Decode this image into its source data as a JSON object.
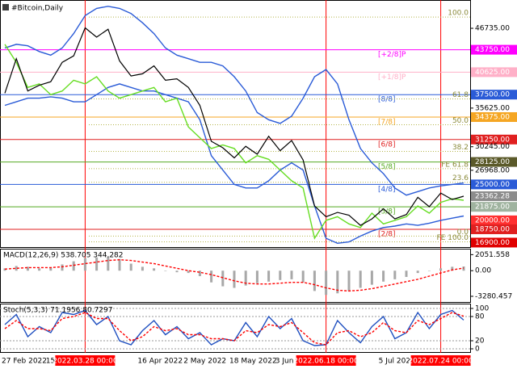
{
  "chart_data": [
    {
      "type": "line",
      "title": "#Bitcoin,Daily",
      "categories": [
        "27 Feb 2022",
        null,
        null,
        null,
        "15",
        null,
        null,
        "2022.03.28 00:00",
        null,
        null,
        null,
        null,
        "16 Apr 2022",
        null,
        null,
        null,
        "2 May 2022",
        null,
        null,
        null,
        "18 May 2022",
        null,
        null,
        null,
        "3 Jun",
        null,
        null,
        null,
        "2022.06.18 00:00",
        null,
        null,
        null,
        null,
        "5 Jul 2022",
        null,
        null,
        null,
        null,
        "2022.07.24 00:00",
        null,
        null
      ],
      "series": [
        {
          "color": "#2a5bd7",
          "style": "line",
          "values": [
            44000,
            44500,
            44300,
            43500,
            43000,
            44000,
            46000,
            48500,
            49500,
            49800,
            49500,
            48800,
            47500,
            46000,
            44000,
            43000,
            42500,
            42000,
            42000,
            41500,
            40000,
            38000,
            35000,
            34000,
            33500,
            34500,
            37000,
            40000,
            41000,
            39000,
            34000,
            30000,
            28000,
            26500,
            24500,
            23500,
            24000,
            24500,
            24800,
            25000,
            25200
          ]
        },
        {
          "color": "#2a5bd7",
          "style": "line",
          "values": [
            36000,
            36500,
            37000,
            37000,
            37200,
            37000,
            36500,
            36500,
            37500,
            38500,
            39000,
            38500,
            38000,
            38000,
            37500,
            37000,
            36500,
            34000,
            29000,
            27000,
            25000,
            24500,
            24500,
            25500,
            27000,
            28000,
            27000,
            22000,
            17500,
            16800,
            17000,
            17800,
            18500,
            19000,
            19200,
            19500,
            19300,
            19600,
            20000,
            20300,
            20600
          ]
        },
        {
          "color": "#66dd22",
          "style": "line",
          "values": [
            44500,
            42000,
            38500,
            39000,
            37500,
            38000,
            39500,
            39000,
            40000,
            38000,
            37000,
            37500,
            38000,
            38500,
            36500,
            37000,
            33000,
            31500,
            30000,
            30500,
            30000,
            28000,
            29000,
            28500,
            27000,
            25500,
            24500,
            17500,
            20000,
            20500,
            19500,
            19000,
            21000,
            19500,
            20000,
            20500,
            22000,
            21000,
            22500,
            23000,
            22800
          ]
        },
        {
          "color": "#000000",
          "style": "line",
          "values": [
            37700,
            42500,
            38000,
            38800,
            39300,
            42000,
            42900,
            46800,
            45500,
            46600,
            42200,
            40100,
            40400,
            41500,
            39500,
            39700,
            38500,
            36000,
            31000,
            30100,
            28700,
            30300,
            29200,
            31700,
            29700,
            31100,
            28400,
            22000,
            20500,
            21100,
            20700,
            19300,
            20200,
            21600,
            20200,
            20800,
            23200,
            21900,
            23800,
            22900,
            23362.28
          ]
        }
      ],
      "ylim": [
        16500,
        50000
      ],
      "yticks": [
        {
          "value": 46735,
          "label": "46735.00"
        },
        {
          "value": 43750,
          "label": "43750.00",
          "color": "#ff00ff"
        },
        {
          "value": 40625,
          "label": "40625.00",
          "color": "#ffb0c8"
        },
        {
          "value": 37500,
          "label": "37500.00",
          "color": "#2a5bd7"
        },
        {
          "value": 35625,
          "label": "35625.00"
        },
        {
          "value": 34375,
          "label": "34375.00",
          "color": "#f5a623"
        },
        {
          "value": 31250,
          "label": "31250.00",
          "color": "#e02020"
        },
        {
          "value": 30245,
          "label": "30245.00"
        },
        {
          "value": 28125,
          "label": "28125.00",
          "color": "#5b5a2a"
        },
        {
          "value": 26968,
          "label": "26968.00"
        },
        {
          "value": 25000,
          "label": "25000.00",
          "color": "#2a5bd7"
        },
        {
          "value": 23362.28,
          "label": "23362.28",
          "color": "#8c8c8c"
        },
        {
          "value": 21875,
          "label": "21875.00",
          "color": "#9fb39f"
        },
        {
          "value": 20000,
          "label": "20000.00",
          "color": "#ff3030"
        },
        {
          "value": 18750,
          "label": "18750.00",
          "color": "#e02020"
        },
        {
          "value": 16900,
          "label": "16900.00",
          "color": "#e00000"
        }
      ],
      "levels": [
        {
          "label": "[+2/8]P",
          "value": 43750,
          "color": "#ff00ff"
        },
        {
          "label": "[+1/8]P",
          "value": 40625,
          "color": "#ffb0c8"
        },
        {
          "label": "[8/8]",
          "value": 37500,
          "color": "#2a5bd7"
        },
        {
          "label": "[7/8]",
          "value": 34375,
          "color": "#f5a623"
        },
        {
          "label": "[6/8]",
          "value": 31250,
          "color": "#e02020"
        },
        {
          "label": "[5/8]",
          "value": 28125,
          "color": "#55aa22"
        },
        {
          "label": "[4/8]",
          "value": 25000,
          "color": "#2a5bd7"
        },
        {
          "label": "[3/8]",
          "value": 21875,
          "color": "#55aa22"
        },
        {
          "label": "[2/8]",
          "value": 18750,
          "color": "#e02020"
        }
      ],
      "fib_levels": [
        {
          "label": "100.0",
          "value": 48300
        },
        {
          "label": "61.8",
          "value": 36900
        },
        {
          "label": "50.0",
          "value": 33300
        },
        {
          "label": "38.2",
          "value": 29600
        },
        {
          "label": "FE 61.8",
          "value": 27200
        },
        {
          "label": "23.6",
          "value": 25300
        },
        {
          "label": "0.0",
          "value": 17800
        },
        {
          "label": "FE 100.0",
          "value": 17000
        }
      ],
      "vline_categories": [
        7,
        28,
        38
      ],
      "vline_color": "#ff0000"
    },
    {
      "type": "bar",
      "title": "MACD(12,26,9) 538.705 344.282",
      "series": [
        {
          "color": "#a8a8a8",
          "style": "bar",
          "values": [
            300,
            600,
            500,
            300,
            400,
            800,
            1200,
            1600,
            1700,
            1800,
            1500,
            900,
            500,
            300,
            0,
            -200,
            -300,
            -700,
            -1500,
            -2000,
            -2200,
            -1900,
            -1600,
            -1400,
            -1200,
            -1100,
            -1500,
            -2600,
            -3100,
            -2900,
            -2600,
            -2200,
            -1800,
            -1400,
            -1100,
            -800,
            -300,
            0,
            300,
            500,
            538.705
          ]
        },
        {
          "color": "#ff0000",
          "style": "dashed",
          "values": [
            200,
            300,
            400,
            400,
            400,
            500,
            700,
            900,
            1100,
            1300,
            1400,
            1300,
            1100,
            900,
            600,
            300,
            0,
            -200,
            -500,
            -900,
            -1300,
            -1600,
            -1700,
            -1700,
            -1600,
            -1500,
            -1500,
            -1800,
            -2200,
            -2500,
            -2600,
            -2500,
            -2300,
            -2000,
            -1700,
            -1400,
            -1100,
            -700,
            -300,
            100,
            344.282
          ]
        }
      ],
      "ylim": [
        -3800,
        2400
      ],
      "yticks": [
        2051.558,
        {
          "value": 0,
          "label": "0.00"
        },
        -3280.457
      ]
    },
    {
      "type": "line",
      "title": "Stoch(5,3,3) 71.1956 80.7297",
      "series": [
        {
          "color": "#2050c0",
          "style": "line",
          "values": [
            60,
            85,
            30,
            55,
            40,
            90,
            85,
            95,
            60,
            80,
            20,
            10,
            45,
            70,
            35,
            55,
            25,
            40,
            10,
            25,
            20,
            65,
            30,
            80,
            50,
            75,
            20,
            8,
            10,
            70,
            40,
            15,
            55,
            80,
            25,
            40,
            90,
            50,
            85,
            95,
            71.1956
          ]
        },
        {
          "color": "#ff0000",
          "style": "dashed",
          "values": [
            50,
            70,
            50,
            50,
            45,
            75,
            80,
            90,
            75,
            75,
            45,
            20,
            30,
            55,
            45,
            50,
            35,
            35,
            25,
            25,
            20,
            45,
            40,
            60,
            55,
            65,
            40,
            15,
            10,
            40,
            45,
            30,
            40,
            65,
            45,
            40,
            70,
            60,
            75,
            90,
            80.7297
          ]
        }
      ],
      "ylim": [
        0,
        100
      ],
      "yticks": [
        100,
        80,
        20,
        0
      ],
      "grid": true
    }
  ]
}
